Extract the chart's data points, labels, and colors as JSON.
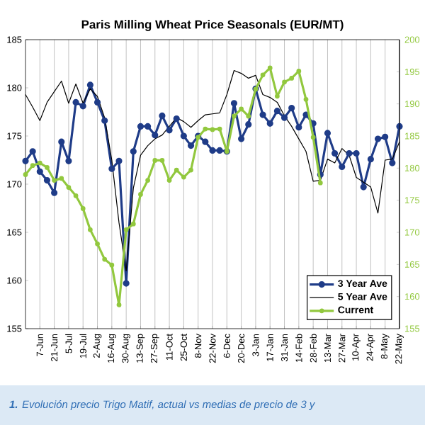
{
  "chart_data": {
    "type": "line",
    "title": "Paris Milling Wheat Price Seasonals (EUR/MT)",
    "annotations": [
      "**1.** Evolución precio Trigo Matif, actual vs medias de precio de 3 y"
    ],
    "categories": [
      null,
      null,
      "7-Jun",
      null,
      "21-Jun",
      null,
      "5-Jul",
      null,
      "19-Jul",
      null,
      "2-Aug",
      null,
      "16-Aug",
      null,
      "30-Aug",
      null,
      "13-Sep",
      null,
      "27-Sep",
      null,
      "11-Oct",
      null,
      "25-Oct",
      null,
      "8-Nov",
      null,
      "22-Nov",
      null,
      "6-Dec",
      null,
      "20-Dec",
      null,
      "3-Jan",
      null,
      "17-Jan",
      null,
      "31-Jan",
      null,
      "14-Feb",
      null,
      "28-Feb",
      null,
      "13-Mar",
      null,
      "27-Mar",
      null,
      "10-Apr",
      null,
      "24-Apr",
      null,
      "8-May",
      null,
      "22-May"
    ],
    "series": [
      {
        "name": "3 Year Ave",
        "color": "#1f3c88",
        "marker": "circle",
        "values": [
          172.4,
          173.4,
          171.3,
          170.4,
          169.1,
          174.4,
          172.4,
          178.5,
          178.1,
          180.3,
          178.5,
          176.6,
          171.6,
          172.4,
          159.7,
          173.4,
          176.0,
          176.0,
          175.1,
          177.1,
          175.6,
          176.8,
          175.0,
          174.0,
          175.0,
          174.4,
          173.5,
          173.5,
          173.4,
          178.4,
          174.7,
          176.2,
          179.9,
          177.2,
          176.3,
          177.6,
          176.9,
          177.9,
          175.9,
          177.2,
          176.3,
          171.0,
          175.3,
          173.2,
          171.8,
          173.2,
          173.2,
          169.7,
          172.6,
          174.7,
          174.9,
          172.2,
          176.0
        ]
      },
      {
        "name": "5 Year Ave",
        "color": "#000000",
        "marker": "none",
        "values": [
          179.3,
          178.0,
          176.6,
          178.5,
          179.6,
          180.7,
          178.4,
          180.4,
          178.4,
          179.9,
          179.1,
          176.9,
          172.5,
          166,
          161,
          169.6,
          173.0,
          174,
          174.7,
          175.1,
          176,
          176.9,
          176.5,
          175.9,
          176.6,
          177.2,
          177.3,
          177.4,
          179.3,
          181.8,
          181.5,
          181.0,
          181.3,
          179.3,
          179.0,
          178.5,
          177.1,
          176.0,
          174.7,
          173.4,
          170.3,
          170.4,
          172.6,
          172.2,
          173.7,
          173.0,
          170.7,
          170.2,
          169.7,
          167.0,
          172.5,
          172.6,
          174.4
        ]
      },
      {
        "name": "Current",
        "color": "#92c83e",
        "marker": "circle",
        "axis": "y2",
        "values": [
          179.0,
          180.4,
          180.8,
          180.1,
          178.1,
          178.4,
          177.0,
          175.7,
          173.7,
          170.4,
          168.2,
          165.8,
          164.9,
          158.7,
          170.4,
          171.3,
          175.9,
          178.1,
          181.2,
          181.2,
          178.1,
          179.7,
          178.6,
          179.7,
          184.8,
          186.1,
          186.0,
          186.1,
          182.6,
          188.1,
          189.2,
          188.1,
          192.3,
          194.5,
          195.6,
          191.2,
          193.4,
          194.0,
          195.1,
          190.7,
          184.8,
          177.7,
          null,
          null,
          null,
          null,
          null,
          null,
          null,
          null,
          null,
          null,
          null
        ]
      }
    ],
    "ylim": [
      155,
      185
    ],
    "yticks": [
      155,
      160,
      165,
      170,
      175,
      180,
      185
    ],
    "y2lim": [
      155,
      200
    ],
    "y2ticks": [
      155,
      160,
      165,
      170,
      175,
      180,
      185,
      190,
      195,
      200
    ],
    "grid": "x",
    "legend": "bottom right"
  }
}
